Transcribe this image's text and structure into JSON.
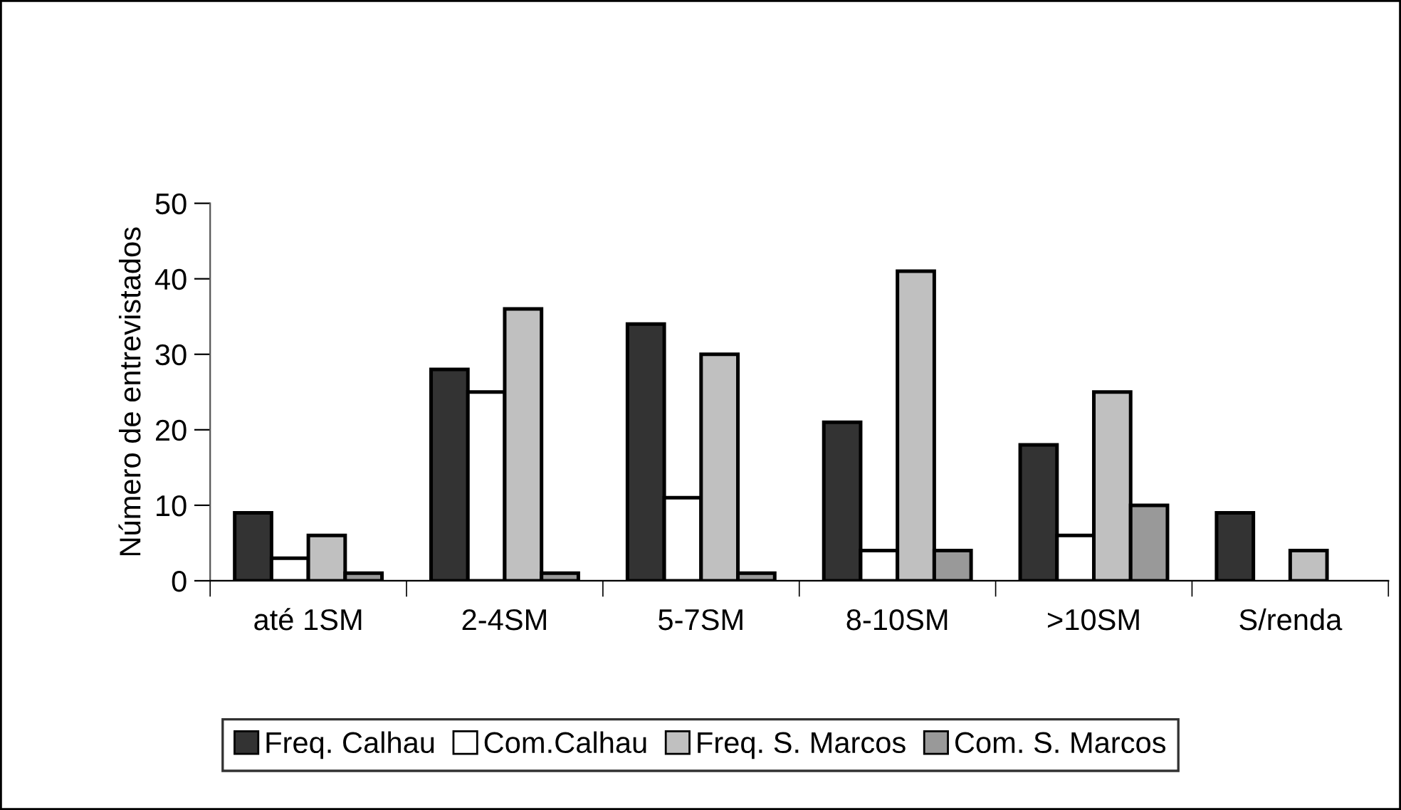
{
  "chart_data": {
    "type": "bar",
    "ylabel": "Número de entrevistados",
    "categories": [
      "até 1SM",
      "2-4SM",
      "5-7SM",
      "8-10SM",
      ">10SM",
      "S/renda"
    ],
    "series": [
      {
        "name": "Freq. Calhau",
        "color": "#333333",
        "values": [
          9,
          28,
          34,
          21,
          18,
          9
        ]
      },
      {
        "name": "Com.Calhau",
        "color": "#ffffff",
        "values": [
          3,
          25,
          11,
          4,
          6,
          null
        ]
      },
      {
        "name": "Freq. S. Marcos",
        "color": "#c0c0c0",
        "values": [
          6,
          36,
          30,
          41,
          25,
          4
        ]
      },
      {
        "name": "Com. S. Marcos",
        "color": "#999999",
        "values": [
          1,
          1,
          1,
          4,
          10,
          null
        ]
      }
    ],
    "ylim": [
      0,
      50
    ],
    "yticks": [
      0,
      10,
      20,
      30,
      40,
      50
    ],
    "grid": false,
    "legend": "bottom"
  }
}
